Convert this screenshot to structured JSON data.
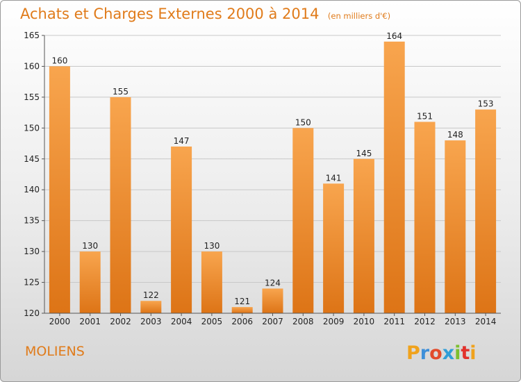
{
  "title": "Achats et Charges Externes 2000 à 2014",
  "subtitle": "(en milliers d'€)",
  "commune": "MOLIENS",
  "brand": "Proxiti",
  "colors": {
    "title": "#e07b1a",
    "bar_top": "#f8a54e",
    "bar_bottom": "#dd7416",
    "grid": "#c8c8c8",
    "axis": "#555555",
    "text": "#222222"
  },
  "chart_data": {
    "type": "bar",
    "title": "Achats et Charges Externes 2000 à 2014",
    "subtitle": "(en milliers d'€)",
    "categories": [
      "2000",
      "2001",
      "2002",
      "2003",
      "2004",
      "2005",
      "2006",
      "2007",
      "2008",
      "2009",
      "2010",
      "2011",
      "2012",
      "2013",
      "2014"
    ],
    "values": [
      160,
      130,
      155,
      122,
      147,
      130,
      121,
      124,
      150,
      141,
      145,
      164,
      151,
      148,
      153
    ],
    "ylim": [
      120,
      165
    ],
    "yticks": [
      120,
      125,
      130,
      135,
      140,
      145,
      150,
      155,
      160,
      165
    ],
    "grid": true,
    "xlabel": "",
    "ylabel": ""
  }
}
